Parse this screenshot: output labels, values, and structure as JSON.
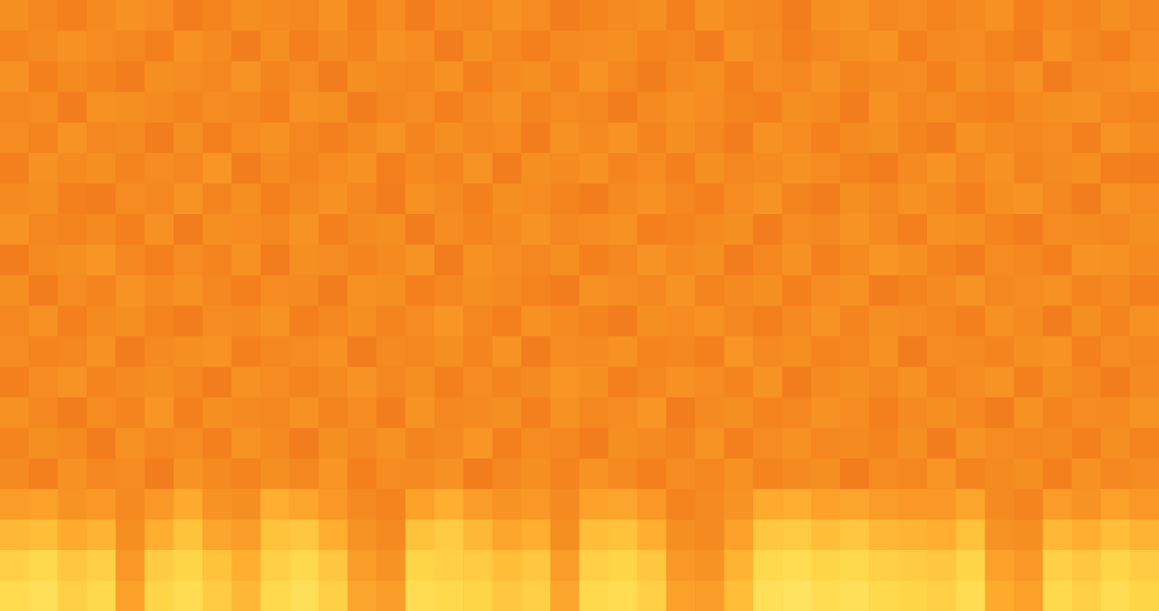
{
  "chart_data": {
    "type": "heatmap",
    "tick_labels": false,
    "zlim": [
      0,
      100
    ],
    "cells": [
      [
        85,
        88,
        80,
        84,
        60,
        82,
        86,
        78,
        70,
        84,
        88,
        80,
        62,
        58,
        86,
        84,
        82,
        76,
        80,
        62,
        84,
        86,
        80,
        60,
        58,
        72,
        88,
        90,
        86,
        88,
        84,
        82,
        80,
        86,
        64,
        60,
        84,
        80,
        86,
        82
      ],
      [
        80,
        84,
        76,
        80,
        56,
        78,
        82,
        74,
        66,
        80,
        84,
        76,
        58,
        54,
        82,
        80,
        78,
        72,
        76,
        58,
        80,
        82,
        76,
        56,
        54,
        68,
        84,
        86,
        82,
        84,
        80,
        78,
        76,
        82,
        60,
        56,
        80,
        76,
        82,
        78
      ],
      [
        70,
        72,
        64,
        68,
        52,
        66,
        74,
        62,
        58,
        74,
        76,
        66,
        54,
        50,
        74,
        78,
        70,
        62,
        66,
        52,
        72,
        74,
        66,
        52,
        50,
        60,
        76,
        78,
        72,
        76,
        70,
        68,
        66,
        74,
        54,
        52,
        70,
        66,
        72,
        68
      ],
      [
        58,
        60,
        54,
        56,
        50,
        56,
        64,
        54,
        52,
        66,
        62,
        56,
        50,
        48,
        60,
        66,
        58,
        54,
        56,
        50,
        60,
        62,
        56,
        48,
        50,
        54,
        64,
        66,
        60,
        62,
        58,
        56,
        56,
        62,
        50,
        48,
        58,
        54,
        60,
        56
      ],
      [
        50,
        47,
        53,
        49,
        51,
        46,
        54,
        50,
        48,
        52,
        49,
        55,
        47,
        51,
        50,
        53,
        46,
        49,
        52,
        48,
        54,
        50,
        47,
        51,
        49,
        53,
        48,
        50,
        52,
        46,
        51,
        49,
        55,
        48,
        50,
        52,
        47,
        53,
        49,
        51
      ],
      [
        48,
        52,
        50,
        46,
        53,
        49,
        51,
        47,
        54,
        50,
        46,
        52,
        49,
        53,
        48,
        50,
        55,
        47,
        51,
        49,
        46,
        52,
        50,
        48,
        54,
        47,
        51,
        53,
        49,
        50,
        48,
        52,
        46,
        54,
        51,
        49,
        50,
        47,
        52,
        48
      ],
      [
        53,
        49,
        46,
        51,
        48,
        55,
        47,
        52,
        50,
        49,
        53,
        48,
        51,
        46,
        54,
        49,
        50,
        52,
        47,
        53,
        49,
        51,
        55,
        46,
        50,
        52,
        48,
        49,
        53,
        51,
        47,
        50,
        52,
        49,
        46,
        53,
        48,
        51,
        50,
        54
      ],
      [
        47,
        51,
        54,
        48,
        50,
        52,
        49,
        46,
        53,
        51,
        48,
        50,
        54,
        49,
        52,
        47,
        51,
        48,
        50,
        55,
        52,
        47,
        49,
        53,
        51,
        48,
        54,
        46,
        50,
        52,
        49,
        53,
        48,
        51,
        54,
        47,
        52,
        49,
        46,
        50
      ],
      [
        51,
        48,
        49,
        53,
        46,
        50,
        52,
        54,
        47,
        49,
        51,
        53,
        46,
        50,
        49,
        52,
        48,
        54,
        46,
        51,
        50,
        53,
        48,
        49,
        47,
        55,
        50,
        52,
        48,
        49,
        53,
        46,
        51,
        50,
        48,
        52,
        54,
        47,
        51,
        49
      ],
      [
        49,
        53,
        47,
        50,
        52,
        48,
        46,
        51,
        50,
        54,
        47,
        49,
        52,
        48,
        51,
        55,
        49,
        47,
        53,
        50,
        48,
        46,
        52,
        51,
        53,
        49,
        47,
        50,
        54,
        48,
        52,
        51,
        49,
        47,
        53,
        50,
        46,
        52,
        48,
        53
      ],
      [
        52,
        46,
        51,
        48,
        54,
        50,
        53,
        49,
        47,
        51,
        50,
        46,
        53,
        52,
        47,
        49,
        52,
        50,
        48,
        46,
        53,
        51,
        49,
        54,
        48,
        50,
        52,
        47,
        51,
        53,
        46,
        48,
        50,
        54,
        49,
        51,
        53,
        48,
        50,
        47
      ],
      [
        46,
        50,
        52,
        55,
        49,
        47,
        51,
        48,
        53,
        46,
        52,
        51,
        48,
        50,
        54,
        46,
        53,
        51,
        49,
        52,
        47,
        49,
        54,
        50,
        52,
        46,
        49,
        53,
        47,
        50,
        55,
        52,
        48,
        46,
        51,
        49,
        47,
        54,
        53,
        50
      ],
      [
        54,
        49,
        48,
        50,
        47,
        53,
        46,
        52,
        51,
        49,
        54,
        47,
        50,
        52,
        46,
        51,
        48,
        50,
        54,
        49,
        51,
        53,
        47,
        48,
        50,
        52,
        46,
        51,
        49,
        54,
        50,
        47,
        53,
        52,
        48,
        46,
        51,
        50,
        49,
        52
      ],
      [
        50,
        52,
        47,
        46,
        51,
        49,
        54,
        48,
        52,
        47,
        50,
        53,
        49,
        46,
        53,
        50,
        47,
        52,
        51,
        48,
        46,
        50,
        53,
        49,
        47,
        51,
        54,
        48,
        46,
        52,
        49,
        53,
        50,
        47,
        52,
        54,
        49,
        46,
        53,
        51
      ],
      [
        47,
        53,
        50,
        52,
        48,
        51,
        49,
        55,
        46,
        50,
        48,
        51,
        53,
        47,
        50,
        48,
        54,
        46,
        52,
        50,
        53,
        48,
        51,
        47,
        52,
        49,
        50,
        53,
        51,
        48,
        46,
        50,
        54,
        49,
        53,
        48,
        50,
        52,
        47,
        46
      ],
      [
        51,
        48,
        54,
        49,
        50,
        46,
        52,
        47,
        51,
        53,
        49,
        47,
        50,
        54,
        48,
        52,
        49,
        51,
        46,
        53,
        50,
        54,
        48,
        52,
        49,
        46,
        53,
        51,
        47,
        50,
        52,
        48,
        46,
        53,
        50,
        49,
        51,
        47,
        54,
        50
      ],
      [
        49,
        51,
        46,
        53,
        52,
        50,
        48,
        51,
        49,
        47,
        53,
        52,
        46,
        49,
        51,
        47,
        50,
        53,
        48,
        51,
        49,
        46,
        50,
        53,
        51,
        48,
        47,
        52,
        50,
        46,
        53,
        49,
        51,
        48,
        47,
        50,
        52,
        53,
        49,
        48
      ],
      [
        53,
        47,
        50,
        48,
        46,
        52,
        51,
        49,
        54,
        48,
        51,
        46,
        52,
        50,
        49,
        53,
        47,
        50,
        52,
        48,
        54,
        49,
        46,
        50,
        52,
        47,
        51,
        49,
        53,
        48,
        50,
        51,
        47,
        52,
        49,
        53,
        46,
        50,
        51,
        53
      ],
      [
        48,
        50,
        53,
        51,
        49,
        47,
        53,
        50,
        46,
        52,
        47,
        50,
        48,
        53,
        51,
        46,
        52,
        49,
        47,
        50,
        51,
        52,
        48,
        49,
        46,
        53,
        50,
        47,
        49,
        52,
        54,
        47,
        50,
        51,
        48,
        46,
        53,
        49,
        47,
        51
      ],
      [
        52,
        49,
        47,
        50,
        53,
        51,
        46,
        48,
        52,
        50,
        49,
        53,
        47,
        51,
        46,
        50,
        49,
        53,
        51,
        46,
        48,
        50,
        52,
        47,
        53,
        50,
        49,
        46,
        52,
        54,
        49,
        51,
        48,
        50,
        53,
        47,
        50,
        48,
        52,
        49
      ]
    ]
  }
}
